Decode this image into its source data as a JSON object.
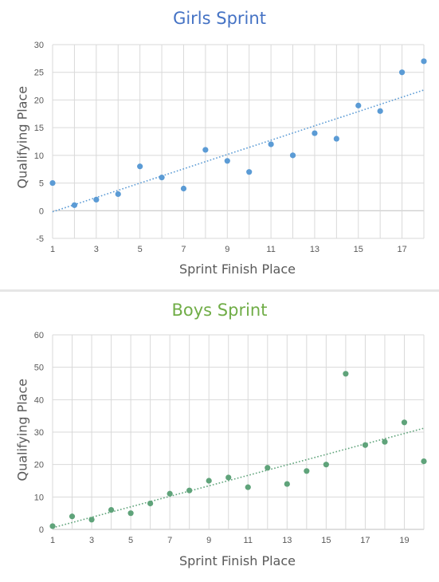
{
  "chart_data": [
    {
      "type": "scatter",
      "title": "Girls Sprint",
      "xlabel": "Sprint Finish Place",
      "ylabel": "Qualifying Place",
      "xlim": [
        1,
        18
      ],
      "ylim": [
        -5,
        30
      ],
      "x_ticks": [
        1,
        3,
        5,
        7,
        9,
        11,
        13,
        15,
        17
      ],
      "y_ticks": [
        -5,
        0,
        5,
        10,
        15,
        20,
        25,
        30
      ],
      "grid": true,
      "title_color": "#4472c4",
      "point_color": "#5b9bd5",
      "series": [
        {
          "x": [
            1,
            2,
            3,
            4,
            5,
            6,
            7,
            8,
            9,
            10,
            11,
            12,
            13,
            14,
            15,
            16,
            17,
            18
          ],
          "y": [
            5,
            1,
            2,
            3,
            8,
            6,
            4,
            11,
            9,
            7,
            12,
            10,
            14,
            13,
            19,
            18,
            25,
            27
          ]
        }
      ],
      "trendline": {
        "type": "linear",
        "style": "dotted",
        "start": [
          1,
          -0.2
        ],
        "end": [
          18,
          21.8
        ]
      }
    },
    {
      "type": "scatter",
      "title": "Boys Sprint",
      "xlabel": "Sprint Finish Place",
      "ylabel": "Qualifying Place",
      "xlim": [
        1,
        20
      ],
      "ylim": [
        0,
        60
      ],
      "x_ticks": [
        1,
        3,
        5,
        7,
        9,
        11,
        13,
        15,
        17,
        19
      ],
      "y_ticks": [
        0,
        10,
        20,
        30,
        40,
        50,
        60
      ],
      "grid": true,
      "title_color": "#70ad47",
      "point_color": "#5fa37a",
      "series": [
        {
          "x": [
            1,
            2,
            3,
            4,
            5,
            6,
            7,
            8,
            9,
            10,
            11,
            12,
            13,
            14,
            15,
            16,
            17,
            18,
            19,
            20
          ],
          "y": [
            1,
            4,
            3,
            6,
            5,
            8,
            11,
            12,
            15,
            16,
            13,
            19,
            14,
            18,
            20,
            48,
            26,
            27,
            33,
            21
          ]
        }
      ],
      "trendline": {
        "type": "linear",
        "style": "dotted",
        "start": [
          1,
          0.5
        ],
        "end": [
          20,
          31.2
        ]
      }
    }
  ]
}
